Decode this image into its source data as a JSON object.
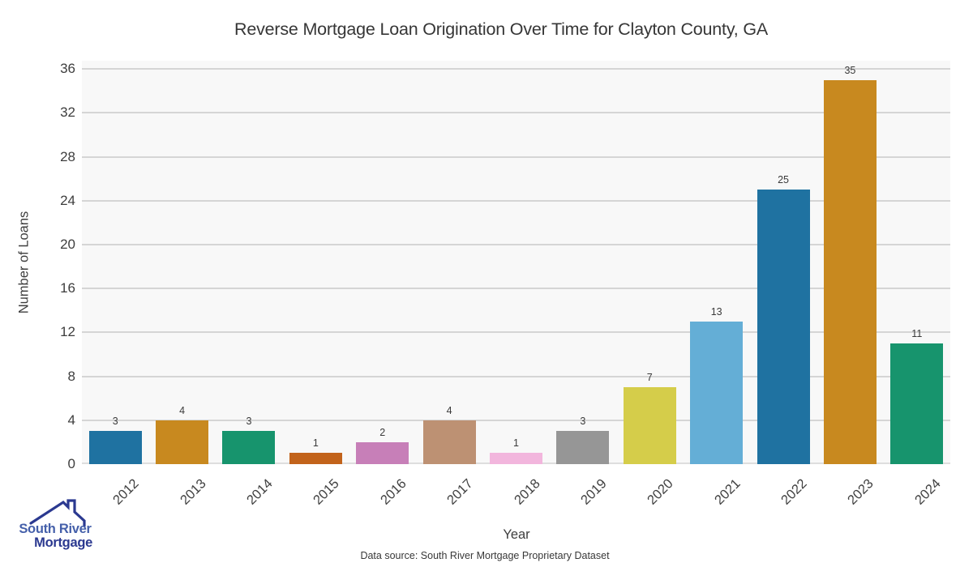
{
  "title": "Reverse Mortgage Loan Origination Over Time for Clayton County, GA",
  "ylabel": "Number of Loans",
  "xlabel": "Year",
  "footer": "Data source: South River Mortgage Proprietary Dataset",
  "logo": {
    "line1": "South River",
    "line2": "Mortgage"
  },
  "chart_data": {
    "type": "bar",
    "categories": [
      "2012",
      "2013",
      "2014",
      "2015",
      "2016",
      "2017",
      "2018",
      "2019",
      "2020",
      "2021",
      "2022",
      "2023",
      "2024"
    ],
    "values": [
      3,
      4,
      3,
      1,
      2,
      4,
      1,
      3,
      7,
      13,
      25,
      35,
      11
    ],
    "bar_colors": [
      "#1f72a1",
      "#c8891f",
      "#17946d",
      "#c2631b",
      "#c77fb8",
      "#bd9173",
      "#f2b6dd",
      "#969696",
      "#d5cd4a",
      "#64aed6",
      "#1f72a1",
      "#c8891f",
      "#17946d"
    ],
    "title": "Reverse Mortgage Loan Origination Over Time for Clayton County, GA",
    "xlabel": "Year",
    "ylabel": "Number of Loans",
    "yticks": [
      0,
      4,
      8,
      12,
      16,
      20,
      24,
      28,
      32,
      36
    ],
    "ylim": [
      0,
      36.75
    ],
    "grid": "horizontal",
    "plot_background": "#f8f8f8",
    "gridline_color": "#d5d5d5"
  }
}
